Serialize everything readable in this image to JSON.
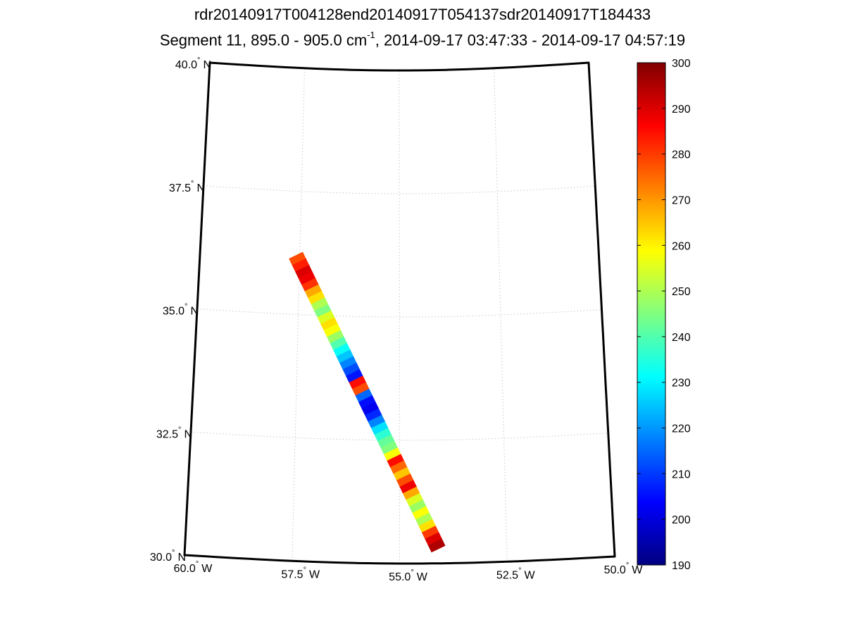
{
  "title_line1": "rdr20140917T004128end20140917T054137sdr20140917T184433",
  "title_line2_prefix": "Segment 11, 895.0 - 905.0 cm",
  "title_line2_sup": "-1",
  "title_line2_suffix": ", 2014-09-17 03:47:33 - 2014-09-17 04:57:19",
  "map": {
    "lon_range": [
      -60.0,
      -50.0
    ],
    "lat_range": [
      30.0,
      40.0
    ],
    "grid": true,
    "lat_ticks": [
      {
        "value": 40.0,
        "num": "40.0",
        "hemi": "N"
      },
      {
        "value": 37.5,
        "num": "37.5",
        "hemi": "N"
      },
      {
        "value": 35.0,
        "num": "35.0",
        "hemi": "N"
      },
      {
        "value": 32.5,
        "num": "32.5",
        "hemi": "N"
      },
      {
        "value": 30.0,
        "num": "30.0",
        "hemi": "N"
      }
    ],
    "lon_ticks": [
      {
        "value": -60.0,
        "num": "60.0",
        "hemi": "W"
      },
      {
        "value": -57.5,
        "num": "57.5",
        "hemi": "W"
      },
      {
        "value": -55.0,
        "num": "55.0",
        "hemi": "W"
      },
      {
        "value": -52.5,
        "num": "52.5",
        "hemi": "W"
      },
      {
        "value": -50.0,
        "num": "50.0",
        "hemi": "W"
      }
    ],
    "swath": {
      "start": {
        "lon": -57.6,
        "lat": 36.2
      },
      "end": {
        "lon": -54.1,
        "lat": 30.3
      },
      "values": [
        278,
        283,
        290,
        288,
        281,
        268,
        262,
        250,
        245,
        255,
        262,
        258,
        248,
        240,
        232,
        225,
        218,
        212,
        206,
        285,
        278,
        215,
        205,
        202,
        208,
        218,
        228,
        236,
        242,
        245,
        258,
        285,
        275,
        265,
        278,
        288,
        268,
        255,
        248,
        258,
        250,
        262,
        280,
        290,
        295
      ]
    }
  },
  "colorbar": {
    "min": 190,
    "max": 300,
    "ticks": [
      "300",
      "290",
      "280",
      "270",
      "260",
      "250",
      "240",
      "230",
      "220",
      "210",
      "200",
      "190"
    ]
  }
}
